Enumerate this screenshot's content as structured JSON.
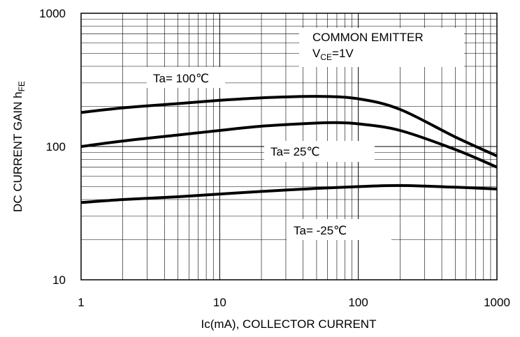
{
  "chart_data": {
    "type": "line",
    "x_scale": "log",
    "y_scale": "log",
    "xlim": [
      1,
      1000
    ],
    "ylim": [
      10,
      1000
    ],
    "grid": true,
    "xlabel": "Ic(mA), COLLECTOR CURRENT",
    "ylabel_main": "DC CURRENT GAIN h",
    "ylabel_sub": "FE",
    "x_ticks": [
      "1",
      "10",
      "100",
      "1000"
    ],
    "y_ticks": [
      "10",
      "100",
      "1000"
    ],
    "annotations": {
      "condition_line1": "COMMON EMITTER",
      "condition_line2_main": "V",
      "condition_line2_sub": "CE",
      "condition_line2_rest": "=1V"
    },
    "series": [
      {
        "name": "Ta= 100℃",
        "x": [
          1,
          2,
          5,
          10,
          20,
          50,
          100,
          200,
          500,
          1000
        ],
        "y": [
          180,
          195,
          210,
          222,
          232,
          238,
          228,
          190,
          118,
          85
        ]
      },
      {
        "name": "Ta= 25℃",
        "x": [
          1,
          2,
          5,
          10,
          20,
          50,
          70,
          100,
          200,
          500,
          1000
        ],
        "y": [
          100,
          110,
          122,
          132,
          142,
          150,
          151,
          148,
          132,
          95,
          70
        ]
      },
      {
        "name": "Ta= -25℃",
        "x": [
          1,
          2,
          5,
          10,
          20,
          50,
          100,
          200,
          500,
          1000
        ],
        "y": [
          38,
          40,
          42,
          44,
          46,
          48.5,
          50,
          51,
          49.5,
          48
        ]
      }
    ]
  }
}
